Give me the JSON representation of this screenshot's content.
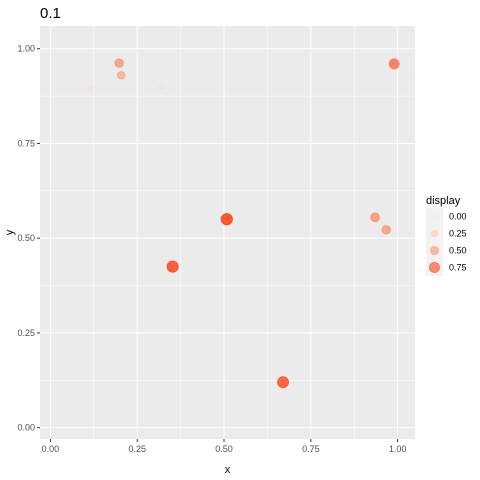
{
  "chart_data": {
    "type": "scatter",
    "title": "0.1",
    "xlabel": "x",
    "ylabel": "y",
    "xlim": [
      -0.03,
      1.05
    ],
    "ylim": [
      -0.03,
      1.06
    ],
    "x_ticks": [
      0.0,
      0.25,
      0.5,
      0.75,
      1.0
    ],
    "x_tick_labels": [
      "0.00",
      "0.25",
      "0.50",
      "0.75",
      "1.00"
    ],
    "y_ticks": [
      0.0,
      0.25,
      0.5,
      0.75,
      1.0
    ],
    "y_tick_labels": [
      "0.00",
      "0.25",
      "0.50",
      "0.75",
      "1.00"
    ],
    "grid": true,
    "panel_background": "#ebebeb",
    "grid_color": "#ffffff",
    "point_color_low": "#fee0d2",
    "point_color_high": "#ff3b10",
    "points": [
      {
        "x": 0.117,
        "y": 0.893,
        "display": 0.08
      },
      {
        "x": 0.318,
        "y": 0.898,
        "display": 0.06
      },
      {
        "x": 0.198,
        "y": 0.962,
        "display": 0.55
      },
      {
        "x": 0.204,
        "y": 0.93,
        "display": 0.45
      },
      {
        "x": 0.99,
        "y": 0.96,
        "display": 0.72
      },
      {
        "x": 0.935,
        "y": 0.555,
        "display": 0.58
      },
      {
        "x": 0.967,
        "y": 0.522,
        "display": 0.55
      },
      {
        "x": 0.508,
        "y": 0.55,
        "display": 0.9
      },
      {
        "x": 0.352,
        "y": 0.425,
        "display": 0.88
      },
      {
        "x": 0.67,
        "y": 0.12,
        "display": 0.85
      }
    ],
    "legend": {
      "title": "display",
      "position": "right",
      "entries": [
        {
          "label": "0.00",
          "value": 0.0
        },
        {
          "label": "0.25",
          "value": 0.25
        },
        {
          "label": "0.50",
          "value": 0.5
        },
        {
          "label": "0.75",
          "value": 0.75
        }
      ]
    }
  }
}
